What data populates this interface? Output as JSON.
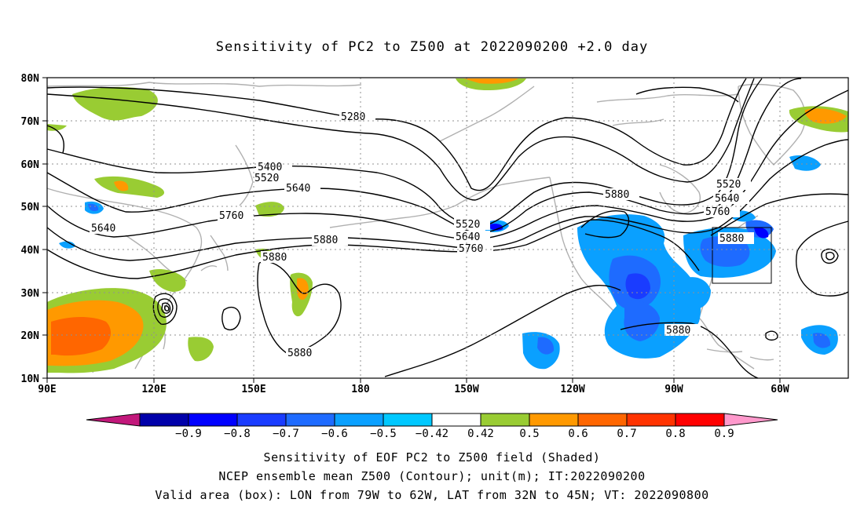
{
  "title": "Sensitivity of PC2 to Z500 at 2022090200 +2.0 day",
  "lat_labels": [
    "80N",
    "70N",
    "60N",
    "50N",
    "40N",
    "30N",
    "20N",
    "10N"
  ],
  "lon_labels": [
    "90E",
    "120E",
    "150E",
    "180",
    "150W",
    "120W",
    "90W",
    "60W"
  ],
  "contour_labels": {
    "c5280": "5280",
    "c5400": "5400",
    "c5520a": "5520",
    "c5640a": "5640",
    "c5760a": "5760",
    "c5640b": "5640",
    "c5880a": "5880",
    "c5880b": "5880",
    "c5880c": "5880",
    "c5520b": "5520",
    "c5640c": "5640",
    "c5760b": "5760",
    "c5880d": "5880",
    "c5520c": "5520",
    "c5640d": "5640",
    "c5760c": "5760",
    "c5880e": "5880",
    "c5880f": "5880"
  },
  "colorbar": {
    "labels": [
      "−0.9",
      "−0.8",
      "−0.7",
      "−0.6",
      "−0.5",
      "−0.42",
      "0.42",
      "0.5",
      "0.6",
      "0.7",
      "0.8",
      "0.9"
    ],
    "colors": [
      "#c2187b",
      "#0000aa",
      "#0000ff",
      "#1a3cff",
      "#1e6bff",
      "#0aa0ff",
      "#00c8ff",
      "#ffffff",
      "#99cc33",
      "#ff9900",
      "#ff6600",
      "#ff3300",
      "#ff0000",
      "#ff99cc"
    ]
  },
  "captions": {
    "line1": "Sensitivity of EOF PC2 to Z500 field (Shaded)",
    "line2": "NCEP ensemble mean Z500 (Contour); unit(m); IT:2022090200",
    "line3": "Valid area (box): LON from 79W to 62W, LAT from 32N to 45N; VT: 2022090800"
  }
}
